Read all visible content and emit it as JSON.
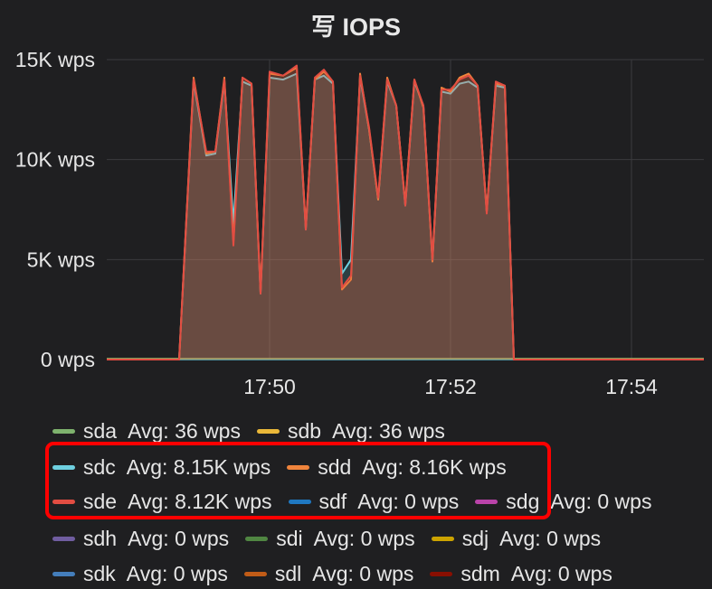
{
  "panel": {
    "title_icon": "写",
    "title": "IOPS"
  },
  "chart_data": {
    "type": "line",
    "y_tick_labels": [
      "0 wps",
      "5K wps",
      "10K wps",
      "15K wps"
    ],
    "y_ticks": [
      0,
      5000,
      10000,
      15000
    ],
    "ylim": [
      0,
      15000
    ],
    "x_tick_labels": [
      "17:50",
      "17:52",
      "17:54"
    ],
    "x_ticks": [
      10,
      30,
      50
    ],
    "xlim": [
      -8,
      58
    ],
    "grid": true,
    "area_fill": true,
    "series": [
      {
        "name": "sde",
        "color": "#e24d42",
        "avg_label": "Avg: 8.12K wps",
        "x": [
          -8,
          0,
          1.6,
          3,
          4,
          5,
          6,
          7,
          8,
          9,
          10,
          11.5,
          13,
          14,
          15,
          16,
          17,
          18,
          19,
          20,
          21,
          22,
          23,
          24,
          25,
          26,
          27,
          28,
          29,
          30,
          31,
          32,
          33,
          34,
          35,
          36,
          37,
          38,
          39,
          40,
          41,
          42,
          43,
          44,
          45,
          46,
          47,
          48,
          49,
          50,
          51,
          52,
          58
        ],
        "y": [
          0,
          0,
          14000,
          10400,
          10400,
          14000,
          5700,
          14100,
          13800,
          3300,
          14400,
          14200,
          14700,
          6500,
          14100,
          14500,
          13900,
          3600,
          4200,
          14200,
          11600,
          8100,
          14000,
          12700,
          7700,
          14000,
          12700,
          5000,
          13500,
          13500,
          14000,
          14200,
          13700,
          7300,
          13900,
          13700,
          0,
          0,
          0,
          0,
          0,
          0,
          0,
          0,
          0,
          0,
          0,
          0,
          0,
          0,
          0,
          0,
          0
        ]
      },
      {
        "name": "sdd",
        "color": "#ef843c",
        "avg_label": "Avg: 8.16K wps",
        "x": [
          -8,
          0,
          1.6,
          3,
          4,
          5,
          6,
          7,
          8,
          9,
          10,
          11.5,
          13,
          14,
          15,
          16,
          17,
          18,
          19,
          20,
          21,
          22,
          23,
          24,
          25,
          26,
          27,
          28,
          29,
          30,
          31,
          32,
          33,
          34,
          35,
          36,
          37,
          58
        ],
        "y": [
          0,
          0,
          14100,
          10300,
          10400,
          14100,
          5900,
          14100,
          13800,
          3400,
          14300,
          14200,
          14600,
          6600,
          14000,
          14400,
          13900,
          3500,
          4000,
          14300,
          11500,
          8000,
          14100,
          12700,
          7800,
          14000,
          12600,
          4900,
          13600,
          13400,
          14100,
          14300,
          13700,
          7400,
          13800,
          13700,
          0,
          0
        ]
      },
      {
        "name": "sdc",
        "color": "#6ed0e0",
        "avg_label": "Avg: 8.15K wps",
        "x": [
          -8,
          0,
          1.6,
          3,
          4,
          5,
          6,
          7,
          8,
          9,
          10,
          11.5,
          13,
          14,
          15,
          16,
          17,
          18,
          19,
          20,
          21,
          22,
          23,
          24,
          25,
          26,
          27,
          28,
          29,
          30,
          31,
          32,
          33,
          34,
          35,
          36,
          37,
          58
        ],
        "y": [
          0,
          0,
          13900,
          10200,
          10300,
          13900,
          6800,
          13900,
          13700,
          3300,
          14100,
          14000,
          14300,
          6500,
          14000,
          14200,
          13800,
          4300,
          5000,
          14100,
          11500,
          8000,
          13900,
          12700,
          7700,
          13900,
          12700,
          4900,
          13400,
          13300,
          13800,
          13900,
          13600,
          7400,
          13700,
          13600,
          0,
          0
        ]
      },
      {
        "name": "sda",
        "color": "#7eb26d",
        "avg_label": "Avg: 36 wps",
        "x": [
          -8,
          58
        ],
        "y": [
          36,
          36
        ]
      },
      {
        "name": "sdb",
        "color": "#eab839",
        "avg_label": "Avg: 36 wps",
        "x": [
          -8,
          58
        ],
        "y": [
          36,
          36
        ]
      },
      {
        "name": "sdf",
        "color": "#1f78c1",
        "avg_label": "Avg: 0 wps",
        "x": [
          -8,
          58
        ],
        "y": [
          0,
          0
        ]
      },
      {
        "name": "sdg",
        "color": "#ba43a9",
        "avg_label": "Avg: 0 wps",
        "x": [
          -8,
          58
        ],
        "y": [
          0,
          0
        ]
      },
      {
        "name": "sdh",
        "color": "#705da0",
        "avg_label": "Avg: 0 wps",
        "x": [
          -8,
          58
        ],
        "y": [
          0,
          0
        ]
      },
      {
        "name": "sdi",
        "color": "#508642",
        "avg_label": "Avg: 0 wps",
        "x": [
          -8,
          58
        ],
        "y": [
          0,
          0
        ]
      },
      {
        "name": "sdj",
        "color": "#cca300",
        "avg_label": "Avg: 0 wps",
        "x": [
          -8,
          58
        ],
        "y": [
          0,
          0
        ]
      },
      {
        "name": "sdk",
        "color": "#447ebc",
        "avg_label": "Avg: 0 wps",
        "x": [
          -8,
          58
        ],
        "y": [
          0,
          0
        ]
      },
      {
        "name": "sdl",
        "color": "#c15c17",
        "avg_label": "Avg: 0 wps",
        "x": [
          -8,
          58
        ],
        "y": [
          0,
          0
        ]
      },
      {
        "name": "sdm",
        "color": "#890f02",
        "avg_label": "Avg: 0 wps",
        "x": [
          -8,
          58
        ],
        "y": [
          0,
          0
        ]
      }
    ]
  },
  "legend": {
    "rows": [
      [
        "sda",
        "sdb"
      ],
      [
        "sdc",
        "sdd"
      ],
      [
        "sde",
        "sdf",
        "sdg"
      ],
      [
        "sdh",
        "sdi",
        "sdj"
      ],
      [
        "sdk",
        "sdl",
        "sdm"
      ]
    ],
    "highlight_color": "#ff0000"
  }
}
